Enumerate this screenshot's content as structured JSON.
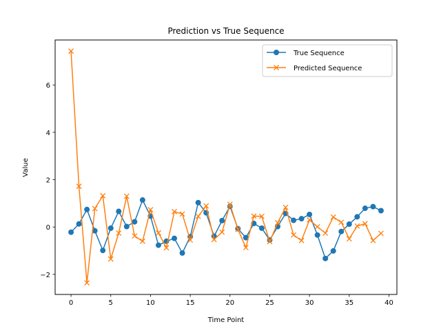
{
  "chart_data": {
    "type": "line",
    "title": "Prediction vs True Sequence",
    "xlabel": "Time Point",
    "ylabel": "Value",
    "xlim": [
      -2,
      41
    ],
    "ylim": [
      -2.85,
      7.9
    ],
    "xticks": [
      0,
      5,
      10,
      15,
      20,
      25,
      30,
      35,
      40
    ],
    "yticks": [
      -2,
      0,
      2,
      4,
      6
    ],
    "xtick_labels": [
      "0",
      "5",
      "10",
      "15",
      "20",
      "25",
      "30",
      "35",
      "40"
    ],
    "ytick_labels": [
      "−2",
      "0",
      "2",
      "4",
      "6"
    ],
    "grid": false,
    "legend_position": "top-right",
    "x": [
      0,
      1,
      2,
      3,
      4,
      5,
      6,
      7,
      8,
      9,
      10,
      11,
      12,
      13,
      14,
      15,
      16,
      17,
      18,
      19,
      20,
      21,
      22,
      23,
      24,
      25,
      26,
      27,
      28,
      29,
      30,
      31,
      32,
      33,
      34,
      35,
      36,
      37,
      38,
      39
    ],
    "series": [
      {
        "name": "True Sequence",
        "color": "#1f77b4",
        "marker": "circle",
        "values": [
          -0.22,
          0.13,
          0.74,
          -0.16,
          -0.99,
          -0.05,
          0.66,
          0.02,
          0.22,
          1.14,
          0.46,
          -0.77,
          -0.6,
          -0.48,
          -1.1,
          -0.41,
          1.03,
          0.6,
          -0.39,
          0.27,
          0.87,
          -0.07,
          -0.45,
          0.15,
          -0.05,
          -0.55,
          0.02,
          0.57,
          0.28,
          0.35,
          0.53,
          -0.34,
          -1.33,
          -1.01,
          -0.19,
          0.12,
          0.43,
          0.79,
          0.86,
          0.69
        ]
      },
      {
        "name": "Predicted Sequence",
        "color": "#ff7f0e",
        "marker": "x",
        "values": [
          7.43,
          1.72,
          -2.36,
          0.78,
          1.32,
          -1.35,
          -0.26,
          1.3,
          -0.38,
          -0.6,
          0.73,
          -0.25,
          -0.88,
          0.65,
          0.55,
          -0.55,
          0.45,
          0.89,
          -0.53,
          -0.22,
          0.96,
          -0.1,
          -0.87,
          0.46,
          0.45,
          -0.62,
          0.18,
          0.83,
          -0.34,
          -0.57,
          0.3,
          0.01,
          -0.26,
          0.42,
          0.2,
          -0.5,
          0.04,
          0.14,
          -0.57,
          -0.27
        ]
      }
    ]
  }
}
